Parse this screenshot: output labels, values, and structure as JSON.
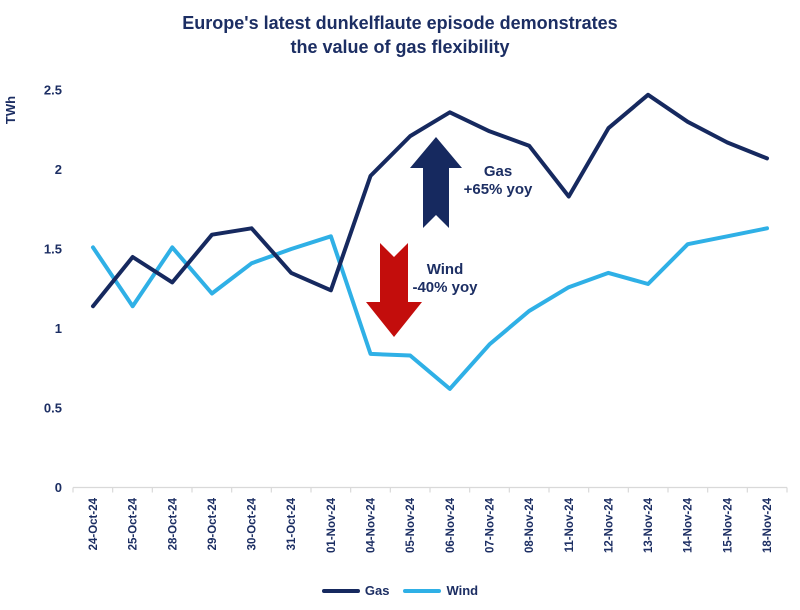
{
  "title": {
    "line1": "Europe's latest dunkelflaute episode demonstrates",
    "line2": "the value of gas flexibility"
  },
  "colors": {
    "navy": "#16295f",
    "light_blue": "#2fb0e6",
    "red": "#c30d0c",
    "axis_line": "#d9d9d9",
    "text": "#1c2e63",
    "background": "#ffffff"
  },
  "y_axis": {
    "unit_label": "TWh",
    "tick_labels": [
      "2.5",
      "2",
      "1.5",
      "1",
      "0.5",
      "0"
    ]
  },
  "chart_data": {
    "type": "line",
    "title": "Europe's latest dunkelflaute episode demonstrates the value of gas flexibility",
    "xlabel": "",
    "ylabel": "TWh",
    "ylim": [
      0,
      2.5
    ],
    "yticks": [
      0,
      0.5,
      1,
      1.5,
      2,
      2.5
    ],
    "grid": false,
    "legend_position": "bottom",
    "categories": [
      "24-Oct-24",
      "25-Oct-24",
      "28-Oct-24",
      "29-Oct-24",
      "30-Oct-24",
      "31-Oct-24",
      "01-Nov-24",
      "04-Nov-24",
      "05-Nov-24",
      "06-Nov-24",
      "07-Nov-24",
      "08-Nov-24",
      "11-Nov-24",
      "12-Nov-24",
      "13-Nov-24",
      "14-Nov-24",
      "15-Nov-24",
      "18-Nov-24"
    ],
    "series": [
      {
        "name": "Gas",
        "color": "#16295f",
        "values": [
          1.14,
          1.45,
          1.29,
          1.59,
          1.63,
          1.35,
          1.24,
          1.96,
          2.21,
          2.36,
          2.24,
          2.15,
          1.83,
          2.26,
          2.47,
          2.3,
          2.17,
          2.07
        ]
      },
      {
        "name": "Wind",
        "color": "#2fb0e6",
        "values": [
          1.51,
          1.14,
          1.51,
          1.22,
          1.41,
          1.5,
          1.58,
          0.84,
          0.83,
          0.62,
          0.9,
          1.11,
          1.26,
          1.35,
          1.28,
          1.53,
          1.58,
          1.63
        ]
      }
    ],
    "annotations": [
      {
        "id": "gas",
        "label": "Gas",
        "value": "+65% yoy",
        "arrow": "up",
        "color": "#16295f"
      },
      {
        "id": "wind",
        "label": "Wind",
        "value": "-40% yoy",
        "arrow": "down",
        "color": "#c30d0c"
      }
    ]
  },
  "legend": {
    "items": [
      {
        "label": "Gas",
        "color": "#16295f"
      },
      {
        "label": "Wind",
        "color": "#2fb0e6"
      }
    ]
  }
}
